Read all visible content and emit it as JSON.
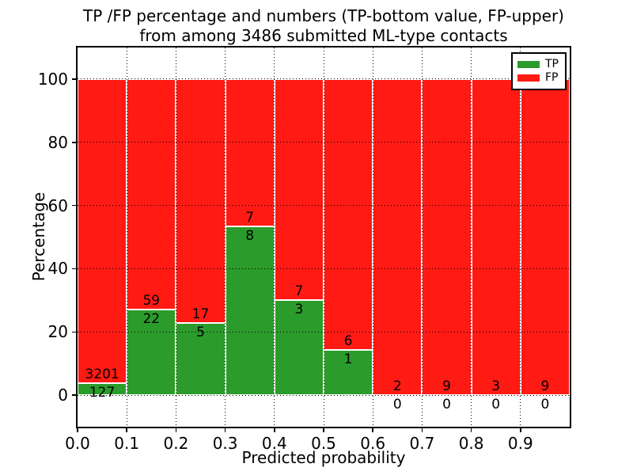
{
  "title": {
    "line1": "TP /FP percentage and numbers (TP-bottom value, FP-upper)",
    "line2": "from among 3486 submitted ML-type contacts"
  },
  "axes": {
    "xlabel": "Predicted probability",
    "ylabel": "Percentage"
  },
  "legend": {
    "position": "upper right",
    "items": [
      {
        "label": "TP",
        "color": "#2B9B2B"
      },
      {
        "label": "FP",
        "color": "#FF1A14"
      }
    ]
  },
  "chart_data": {
    "type": "bar",
    "subtype": "stacked-percentage-histogram",
    "title": "TP /FP percentage and numbers (TP-bottom value, FP-upper) from among 3486 submitted ML-type contacts",
    "xlabel": "Predicted probability",
    "ylabel": "Percentage",
    "total_contacts": 3486,
    "bin_edges": [
      0.0,
      0.1,
      0.2,
      0.3,
      0.4,
      0.5,
      0.6,
      0.7,
      0.8,
      0.9,
      1.0
    ],
    "series": [
      {
        "name": "TP",
        "color": "#2B9B2B",
        "counts": [
          127,
          22,
          5,
          8,
          3,
          1,
          0,
          0,
          0,
          0
        ]
      },
      {
        "name": "FP",
        "color": "#FF1A14",
        "counts": [
          3201,
          59,
          17,
          7,
          7,
          6,
          2,
          9,
          3,
          9
        ]
      }
    ],
    "tp_percentages": [
      3.8,
      27.2,
      22.7,
      53.3,
      30.0,
      14.3,
      0.0,
      0.0,
      0.0,
      0.0
    ],
    "xticks": [
      "0.0",
      "0.1",
      "0.2",
      "0.3",
      "0.4",
      "0.5",
      "0.6",
      "0.7",
      "0.8",
      "0.9"
    ],
    "yticks": [
      0,
      20,
      40,
      60,
      80,
      100
    ],
    "xlim": [
      0.0,
      1.0
    ],
    "ylim": [
      -10,
      110
    ],
    "grid": {
      "style": "dotted",
      "color": "#000000"
    },
    "bar_edge_color": "#FFFFFF",
    "background": "#FFFFFF",
    "legend_position": "upper right"
  }
}
